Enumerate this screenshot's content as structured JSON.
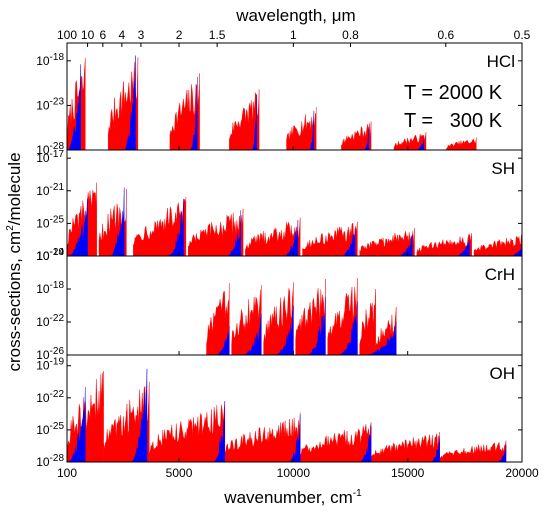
{
  "figure": {
    "x_axis_label": "wavenumber, cm",
    "x_axis_label_sup": "-1",
    "top_axis_label": "wavelength, μm",
    "y_axis_label": "cross-sections, cm",
    "y_axis_label_sup": "2",
    "y_axis_label_suffix": "/molecule",
    "legend": [
      {
        "label": "T = 2000 K",
        "color": "#ff0000"
      },
      {
        "label": "T =   300 K",
        "color": "#0000ff"
      }
    ]
  },
  "chart_data": [
    {
      "type": "line",
      "panel": "HCl",
      "label": "HCl",
      "x_range": [
        100,
        20000
      ],
      "y_scale": "log",
      "y_range_exp": [
        -28,
        -16
      ],
      "y_ticks": [
        {
          "exp": -18,
          "text": "-18"
        },
        {
          "exp": -23,
          "text": "-23"
        },
        {
          "exp": -28,
          "text": "-28"
        }
      ],
      "series": [
        {
          "name": "T = 2000 K",
          "color": "#ff0000",
          "bands": [
            [
              100,
              900,
              -17.7
            ],
            [
              1900,
              3200,
              -17.6
            ],
            [
              4600,
              5900,
              -19.4
            ],
            [
              7200,
              8500,
              -21.2
            ],
            [
              9700,
              11000,
              -23.2
            ],
            [
              12100,
              13400,
              -24.8
            ],
            [
              14400,
              15800,
              -26.0
            ],
            [
              16700,
              18000,
              -26.6
            ]
          ]
        },
        {
          "name": "T = 300 K",
          "color": "#0000ff",
          "bands": [
            [
              100,
              700,
              -18.4
            ],
            [
              2600,
              3100,
              -17.4
            ],
            [
              5500,
              5800,
              -19.8
            ],
            [
              8200,
              8400,
              -21.8
            ],
            [
              10700,
              10900,
              -23.6
            ],
            [
              13100,
              13300,
              -25.4
            ],
            [
              15400,
              15700,
              -26.6
            ]
          ]
        }
      ]
    },
    {
      "type": "line",
      "panel": "SH",
      "label": "SH",
      "x_range": [
        100,
        20000
      ],
      "y_scale": "log",
      "y_range_exp": [
        -29,
        -16
      ],
      "y_ticks": [
        {
          "exp": -17,
          "text": "-17"
        },
        {
          "exp": -21,
          "text": "-21"
        },
        {
          "exp": -25,
          "text": "-25"
        },
        {
          "exp": -29,
          "text": "-29"
        }
      ],
      "series": [
        {
          "name": "T = 2000 K",
          "color": "#ff0000",
          "bands": [
            [
              100,
              1400,
              -20.0
            ],
            [
              1500,
              2700,
              -20.8
            ],
            [
              3000,
              5300,
              -21.8
            ],
            [
              5400,
              7800,
              -23.2
            ],
            [
              7900,
              10300,
              -24.3
            ],
            [
              10400,
              12800,
              -24.8
            ],
            [
              12900,
              15300,
              -25.6
            ],
            [
              15400,
              17800,
              -26.2
            ],
            [
              17900,
              20000,
              -26.4
            ]
          ]
        },
        {
          "name": "T = 300 K",
          "color": "#0000ff",
          "bands": [
            [
              100,
              1000,
              -22.0
            ],
            [
              2000,
              2600,
              -20.6
            ],
            [
              4500,
              5200,
              -22.0
            ],
            [
              7100,
              7700,
              -23.4
            ],
            [
              9600,
              10200,
              -24.6
            ],
            [
              12100,
              12700,
              -25.6
            ],
            [
              14600,
              15200,
              -26.4
            ],
            [
              17100,
              17700,
              -27.0
            ],
            [
              19500,
              20000,
              -27.6
            ]
          ]
        }
      ]
    },
    {
      "type": "line",
      "panel": "CrH",
      "label": "CrH",
      "x_range": [
        100,
        20000
      ],
      "y_scale": "log",
      "y_range_exp": [
        -26,
        -14
      ],
      "y_ticks": [
        {
          "exp": -14,
          "text": "-14"
        },
        {
          "exp": -18,
          "text": "-18"
        },
        {
          "exp": -22,
          "text": "-22"
        },
        {
          "exp": -26,
          "text": "-26"
        }
      ],
      "series": [
        {
          "name": "T = 2000 K",
          "color": "#ff0000",
          "bands": [
            [
              6200,
              7200,
              -17.3
            ],
            [
              7300,
              8600,
              -17.5
            ],
            [
              8700,
              10000,
              -17.2
            ],
            [
              10100,
              11400,
              -16.8
            ],
            [
              11500,
              12800,
              -16.7
            ],
            [
              12900,
              13600,
              -18.0
            ],
            [
              13600,
              14500,
              -20.2
            ]
          ]
        },
        {
          "name": "T = 300 K",
          "color": "#0000ff",
          "bands": [
            [
              6600,
              7200,
              -22.5
            ],
            [
              7800,
              8600,
              -21.0
            ],
            [
              9200,
              10000,
              -20.0
            ],
            [
              10600,
              11400,
              -19.0
            ],
            [
              12000,
              12800,
              -19.5
            ],
            [
              13200,
              14500,
              -22.0
            ]
          ]
        }
      ]
    },
    {
      "type": "line",
      "panel": "OH",
      "label": "OH",
      "x_range": [
        100,
        20000
      ],
      "y_scale": "log",
      "y_range_exp": [
        -28,
        -18
      ],
      "y_ticks": [
        {
          "exp": -19,
          "text": "-19"
        },
        {
          "exp": -22,
          "text": "-22"
        },
        {
          "exp": -25,
          "text": "-25"
        },
        {
          "exp": -28,
          "text": "-28"
        }
      ],
      "series": [
        {
          "name": "T = 2000 K",
          "color": "#ff0000",
          "bands": [
            [
              100,
              1700,
              -19.5
            ],
            [
              1700,
              3700,
              -20.5
            ],
            [
              3700,
              7000,
              -22.3
            ],
            [
              7000,
              10300,
              -23.4
            ],
            [
              10300,
              13400,
              -24.3
            ],
            [
              13400,
              16400,
              -25.2
            ],
            [
              16400,
              19300,
              -26.0
            ]
          ]
        },
        {
          "name": "T = 300 K",
          "color": "#0000ff",
          "bands": [
            [
              100,
              900,
              -21.0
            ],
            [
              2900,
              3600,
              -19.3
            ],
            [
              6500,
              7000,
              -22.3
            ],
            [
              9800,
              10300,
              -23.6
            ],
            [
              12900,
              13400,
              -24.6
            ],
            [
              16000,
              16400,
              -25.6
            ],
            [
              18900,
              19300,
              -26.4
            ]
          ]
        }
      ]
    }
  ],
  "x_axis": {
    "ticks": [
      {
        "value": 100,
        "text": "100"
      },
      {
        "value": 5000,
        "text": "5000"
      },
      {
        "value": 10000,
        "text": "10000"
      },
      {
        "value": 15000,
        "text": "15000"
      },
      {
        "value": 20000,
        "text": "20000"
      }
    ]
  },
  "top_axis": {
    "ticks": [
      {
        "value": 100,
        "text": "100"
      },
      {
        "value": 10,
        "text": "10"
      },
      {
        "value": 6,
        "text": "6"
      },
      {
        "value": 4,
        "text": "4"
      },
      {
        "value": 3,
        "text": "3"
      },
      {
        "value": 2,
        "text": "2"
      },
      {
        "value": 1.5,
        "text": "1.5"
      },
      {
        "value": 1,
        "text": "1"
      },
      {
        "value": 0.8,
        "text": "0.8"
      },
      {
        "value": 0.6,
        "text": "0.6"
      },
      {
        "value": 0.5,
        "text": "0.5"
      }
    ]
  }
}
